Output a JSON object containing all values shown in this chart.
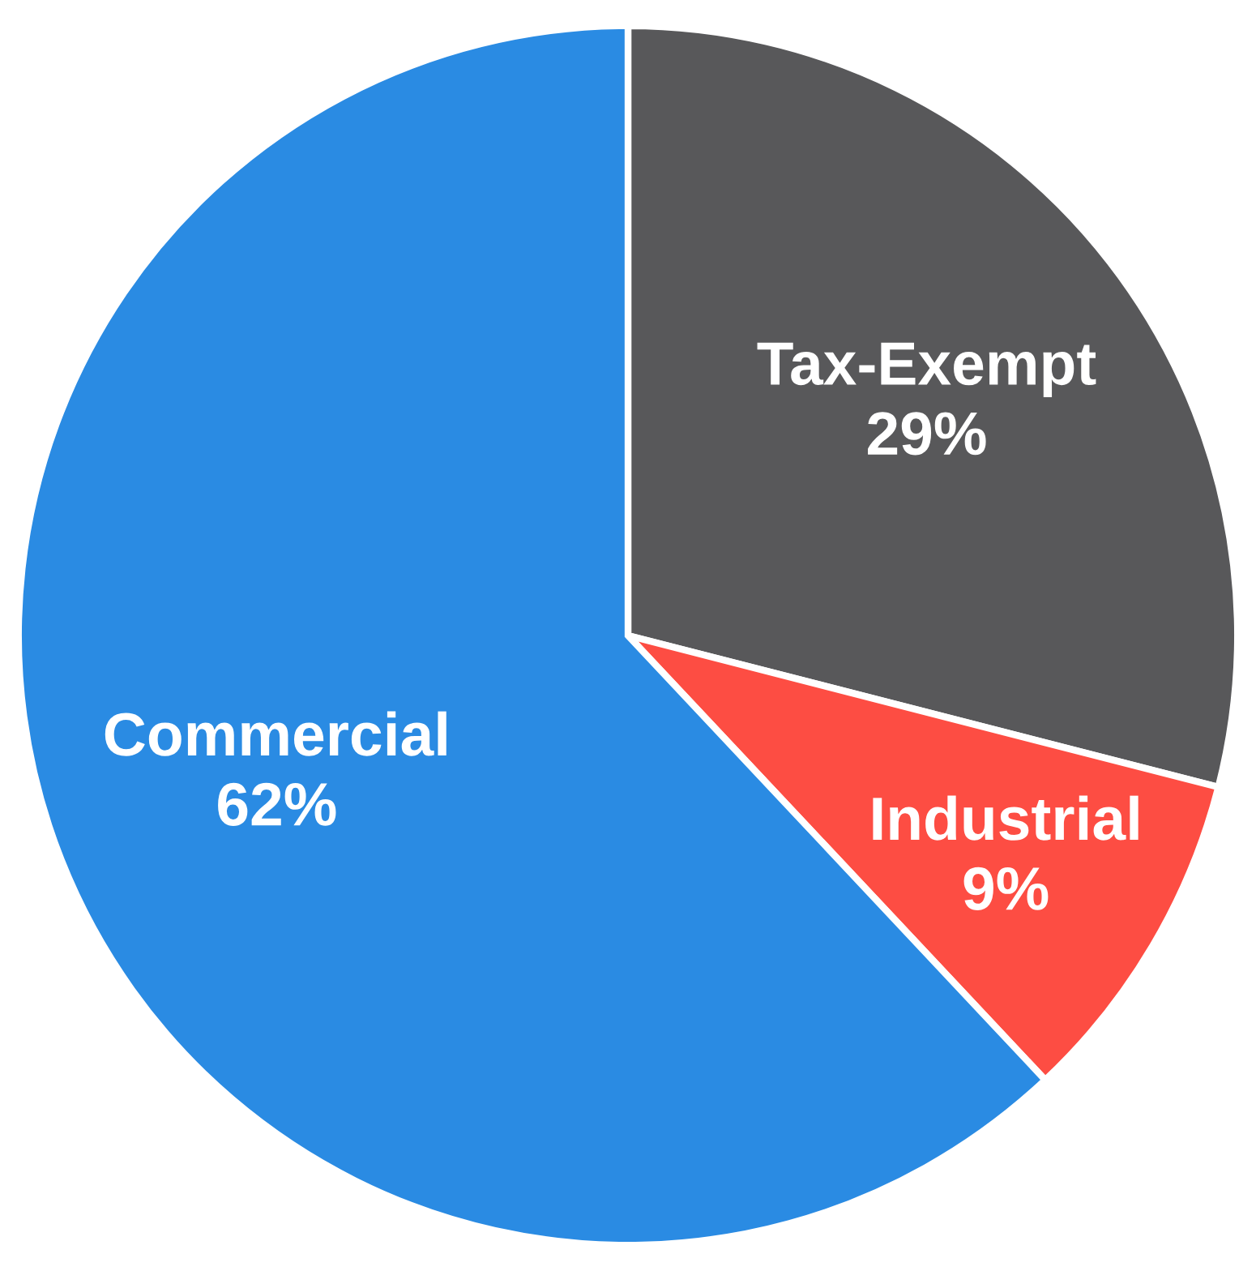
{
  "chart_data": {
    "type": "pie",
    "categories": [
      "Tax-Exempt",
      "Industrial",
      "Commercial"
    ],
    "values": [
      29,
      9,
      62
    ],
    "colors": [
      "#58585a",
      "#fd4d43",
      "#2a8be3"
    ],
    "value_labels": [
      "29%",
      "9%",
      "62%"
    ],
    "legend": false
  }
}
